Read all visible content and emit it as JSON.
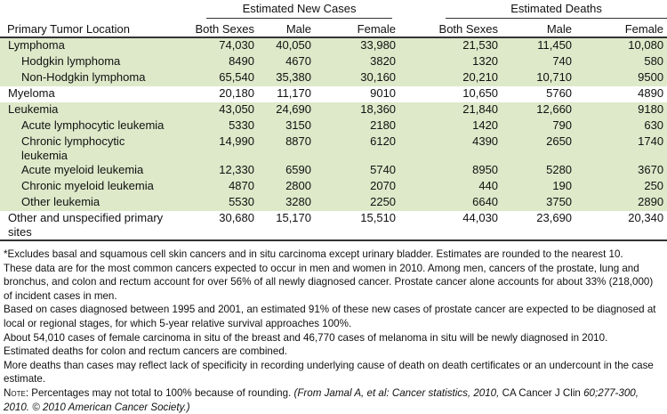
{
  "table": {
    "group_headers": {
      "new_cases": "Estimated New Cases",
      "deaths": "Estimated Deaths"
    },
    "column_headers": [
      "Primary Tumor Location",
      "Both Sexes",
      "Male",
      "Female",
      "Both Sexes",
      "Male",
      "Female"
    ],
    "rows": [
      {
        "location": "Lymphoma",
        "indent": 0,
        "shaded": true,
        "values": [
          "74,030",
          "40,050",
          "33,980",
          "21,530",
          "11,450",
          "10,080"
        ]
      },
      {
        "location": "Hodgkin lymphoma",
        "indent": 1,
        "shaded": true,
        "values": [
          "8490",
          "4670",
          "3820",
          "1320",
          "740",
          "580"
        ]
      },
      {
        "location": "Non-Hodgkin lymphoma",
        "indent": 1,
        "shaded": true,
        "values": [
          "65,540",
          "35,380",
          "30,160",
          "20,210",
          "10,710",
          "9500"
        ]
      },
      {
        "location": "Myeloma",
        "indent": 0,
        "shaded": false,
        "values": [
          "20,180",
          "11,170",
          "9010",
          "10,650",
          "5760",
          "4890"
        ]
      },
      {
        "location": "Leukemia",
        "indent": 0,
        "shaded": true,
        "values": [
          "43,050",
          "24,690",
          "18,360",
          "21,840",
          "12,660",
          "9180"
        ]
      },
      {
        "location": "Acute lymphocytic leukemia",
        "indent": 1,
        "shaded": true,
        "values": [
          "5330",
          "3150",
          "2180",
          "1420",
          "790",
          "630"
        ]
      },
      {
        "location": "Chronic lymphocytic leukemia",
        "indent": 1,
        "shaded": true,
        "wrap": [
          "Chronic lymphocytic",
          "leukemia"
        ],
        "values": [
          "14,990",
          "8870",
          "6120",
          "4390",
          "2650",
          "1740"
        ]
      },
      {
        "location": "Acute myeloid leukemia",
        "indent": 1,
        "shaded": true,
        "values": [
          "12,330",
          "6590",
          "5740",
          "8950",
          "5280",
          "3670"
        ]
      },
      {
        "location": "Chronic myeloid leukemia",
        "indent": 1,
        "shaded": true,
        "values": [
          "4870",
          "2800",
          "2070",
          "440",
          "190",
          "250"
        ]
      },
      {
        "location": "Other leukemia",
        "indent": 1,
        "shaded": true,
        "values": [
          "5530",
          "3280",
          "2250",
          "6640",
          "3750",
          "2890"
        ]
      },
      {
        "location": "Other and unspecified primary sites",
        "indent": 0,
        "shaded": false,
        "wrap": [
          "Other and unspecified primary",
          "sites"
        ],
        "values": [
          "30,680",
          "15,170",
          "15,510",
          "44,030",
          "23,690",
          "20,340"
        ]
      }
    ]
  },
  "notes": {
    "footnotes": [
      "*Excludes basal and squamous cell skin cancers and in situ carcinoma except urinary bladder. Estimates are rounded to the nearest 10.",
      "These data are for the most common cancers expected to occur in men and women in 2010. Among men, cancers of the prostate, lung and bronchus, and colon and rectum account for over 56% of all newly diagnosed cancer. Prostate cancer alone accounts for about 33% (218,000) of incident cases in men.",
      "Based on cases diagnosed between 1995 and 2001, an estimated 91% of these new cases of prostate cancer are expected to be diagnosed at local or regional stages, for which 5-year relative survival approaches 100%.",
      "About 54,010 cases of female carcinoma in situ of the breast and 46,770 cases of melanoma in situ will be newly diagnosed in 2010.",
      "Estimated deaths for colon and rectum cancers are combined.",
      "More deaths than cases may reflect lack of specificity in recording underlying cause of death on death certificates or an undercount in the case estimate."
    ],
    "final": {
      "prefix": "Note:",
      "text": " Percentages may not total to 100% because of rounding. ",
      "citation_italic_1": "(From Jamal A, et al: Cancer statistics, 2010,",
      "journal": " CA Cancer J Clin ",
      "citation_italic_2": "60;277-300, 2010. © 2010 American Cancer Society.)"
    }
  }
}
